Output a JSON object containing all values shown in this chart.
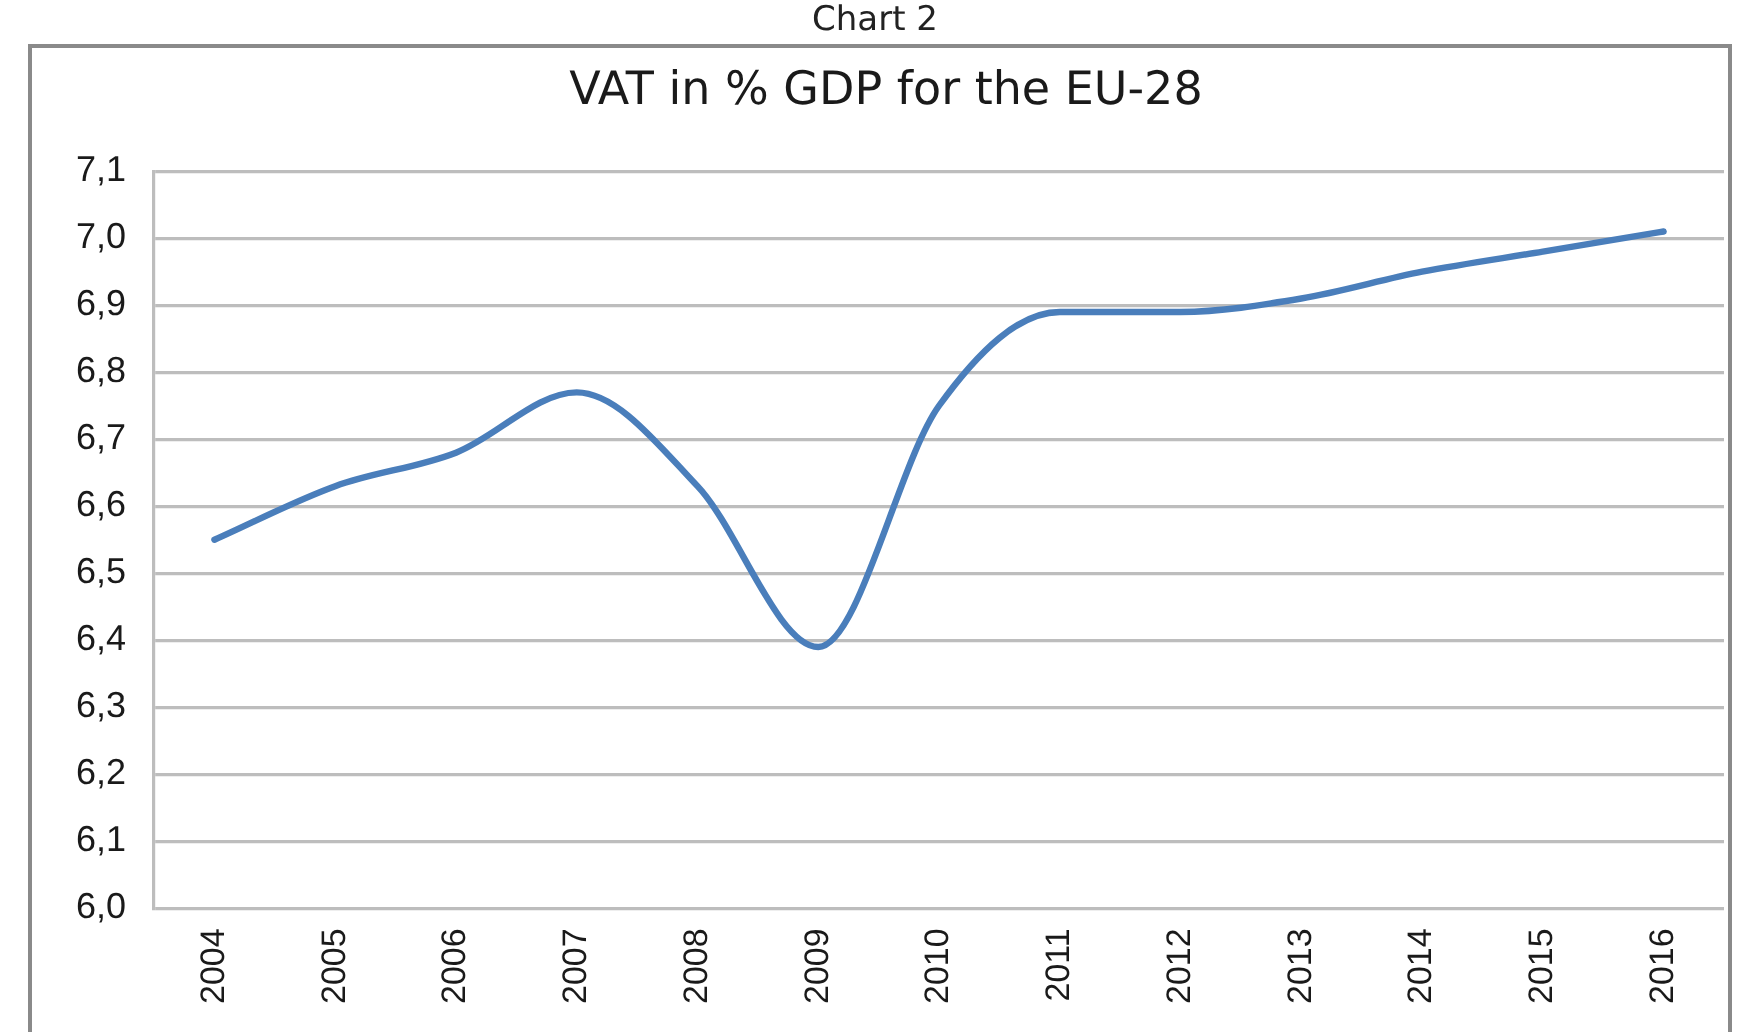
{
  "chart_data": {
    "type": "line",
    "title": "VAT in % GDP for the EU-28",
    "annotations": [
      "Chart 2"
    ],
    "categories": [
      "2004",
      "2005",
      "2006",
      "2007",
      "2008",
      "2009",
      "2010",
      "2011",
      "2012",
      "2013",
      "2014",
      "2015",
      "2016"
    ],
    "values": [
      6.55,
      6.63,
      6.68,
      6.77,
      6.63,
      6.39,
      6.75,
      6.89,
      6.89,
      6.91,
      6.95,
      6.98,
      7.01
    ],
    "color": "#4a7ebb",
    "ylim": [
      6.0,
      7.1
    ],
    "yticks": [
      {
        "value": 6.0,
        "label": "6,0"
      },
      {
        "value": 6.1,
        "label": "6,1"
      },
      {
        "value": 6.2,
        "label": "6,2"
      },
      {
        "value": 6.3,
        "label": "6,3"
      },
      {
        "value": 6.4,
        "label": "6,4"
      },
      {
        "value": 6.5,
        "label": "6,5"
      },
      {
        "value": 6.6,
        "label": "6,6"
      },
      {
        "value": 6.7,
        "label": "6,7"
      },
      {
        "value": 6.8,
        "label": "6,8"
      },
      {
        "value": 6.9,
        "label": "6,9"
      },
      {
        "value": 7.0,
        "label": "7,0"
      },
      {
        "value": 7.1,
        "label": "7,1"
      }
    ],
    "grid": "y"
  }
}
